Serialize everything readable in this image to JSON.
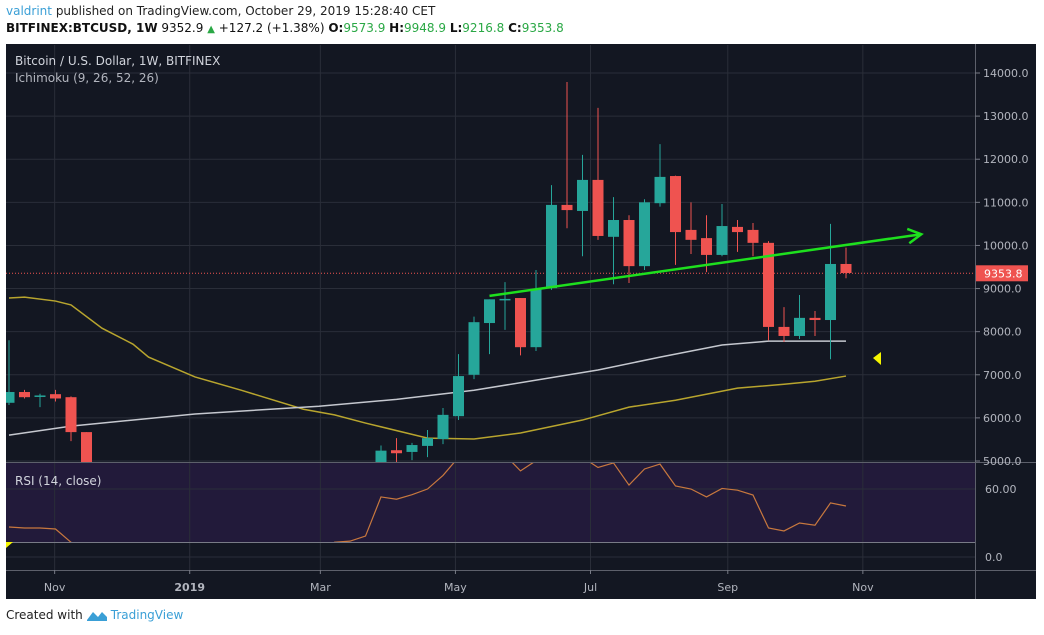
{
  "header": {
    "author": "valdrint",
    "published_text": "published on TradingView.com, October 29, 2019 15:28:40 CET",
    "symbol": "BITFINEX:BTCUSD, 1W",
    "last": "9352.9",
    "change": "+127.2 (+1.38%)",
    "o_label": "O:",
    "o": "9573.9",
    "h_label": "H:",
    "h": "9948.9",
    "l_label": "L:",
    "l": "9216.8",
    "c_label": "C:",
    "c": "9353.8"
  },
  "footer": {
    "created_with": "Created with",
    "brand": "TradingView"
  },
  "colors": {
    "background": "#131722",
    "grid": "#2a2e39",
    "up": "#26a69a",
    "down": "#ef5350",
    "ichimoku_yellow": "#b8a52e",
    "ichimoku_gray": "#c5c8cf",
    "trendline": "#1ee01e",
    "rsi_line": "#c8783e",
    "rsi_band": "#221a3a",
    "price_tag": "#ef5350",
    "marker": "#f5f500"
  },
  "chart_data": {
    "type": "candlestick",
    "title": "Bitcoin / U.S. Dollar, 1W, BITFINEX",
    "indicator": "Ichimoku (9, 26, 52, 26)",
    "ylim": [
      5000,
      14000
    ],
    "y_ticks": [
      "14000.0",
      "13000.0",
      "12000.0",
      "11000.0",
      "10000.0",
      "9000.0",
      "8000.0",
      "7000.0",
      "6000.0",
      "5000.0"
    ],
    "x_ticks": [
      {
        "label": "Nov",
        "date": "2018-11-01",
        "bold": false
      },
      {
        "label": "2019",
        "date": "2019-01-01",
        "bold": true
      },
      {
        "label": "Mar",
        "date": "2019-03-01",
        "bold": false
      },
      {
        "label": "May",
        "date": "2019-05-01",
        "bold": false
      },
      {
        "label": "Jul",
        "date": "2019-07-01",
        "bold": false
      },
      {
        "label": "Sep",
        "date": "2019-09-01",
        "bold": false
      },
      {
        "label": "Nov",
        "date": "2019-11-01",
        "bold": false
      }
    ],
    "grid": true,
    "last_price_label": "9353.8",
    "last_price": 9353.8,
    "candles": [
      {
        "date": "2018-10-15",
        "o": 6350,
        "h": 7800,
        "l": 6300,
        "c": 6600
      },
      {
        "date": "2018-10-22",
        "o": 6600,
        "h": 6650,
        "l": 6450,
        "c": 6480
      },
      {
        "date": "2018-10-29",
        "o": 6500,
        "h": 6560,
        "l": 6250,
        "c": 6520
      },
      {
        "date": "2018-11-05",
        "o": 6550,
        "h": 6650,
        "l": 6380,
        "c": 6450
      },
      {
        "date": "2018-11-12",
        "o": 6480,
        "h": 6500,
        "l": 5460,
        "c": 5670
      },
      {
        "date": "2018-11-19",
        "o": 5670,
        "h": 5670,
        "l": 3500,
        "c": 4000
      },
      {
        "date": "2019-04-01",
        "o": 4100,
        "h": 5360,
        "l": 4050,
        "c": 5240
      },
      {
        "date": "2019-04-08",
        "o": 5250,
        "h": 5530,
        "l": 4850,
        "c": 5180
      },
      {
        "date": "2019-04-15",
        "o": 5210,
        "h": 5420,
        "l": 5020,
        "c": 5370
      },
      {
        "date": "2019-04-22",
        "o": 5350,
        "h": 5720,
        "l": 5090,
        "c": 5530
      },
      {
        "date": "2019-04-29",
        "o": 5510,
        "h": 6230,
        "l": 5390,
        "c": 6070
      },
      {
        "date": "2019-05-06",
        "o": 6040,
        "h": 7480,
        "l": 5950,
        "c": 6970
      },
      {
        "date": "2019-05-13",
        "o": 7000,
        "h": 8350,
        "l": 6900,
        "c": 8220
      },
      {
        "date": "2019-05-20",
        "o": 8200,
        "h": 8750,
        "l": 7480,
        "c": 8750
      },
      {
        "date": "2019-05-27",
        "o": 8740,
        "h": 9150,
        "l": 8040,
        "c": 8760
      },
      {
        "date": "2019-06-03",
        "o": 8780,
        "h": 8780,
        "l": 7450,
        "c": 7640
      },
      {
        "date": "2019-06-10",
        "o": 7640,
        "h": 9430,
        "l": 7550,
        "c": 8990
      },
      {
        "date": "2019-06-17",
        "o": 9010,
        "h": 11400,
        "l": 8970,
        "c": 10940
      },
      {
        "date": "2019-06-24",
        "o": 10940,
        "h": 13790,
        "l": 10400,
        "c": 10820
      },
      {
        "date": "2019-07-01",
        "o": 10800,
        "h": 12100,
        "l": 9750,
        "c": 11520
      },
      {
        "date": "2019-07-08",
        "o": 11520,
        "h": 13190,
        "l": 10130,
        "c": 10220
      },
      {
        "date": "2019-07-15",
        "o": 10200,
        "h": 11120,
        "l": 9100,
        "c": 10590
      },
      {
        "date": "2019-07-22",
        "o": 10590,
        "h": 10700,
        "l": 9130,
        "c": 9520
      },
      {
        "date": "2019-07-29",
        "o": 9520,
        "h": 11070,
        "l": 9430,
        "c": 11000
      },
      {
        "date": "2019-08-05",
        "o": 10980,
        "h": 12350,
        "l": 10900,
        "c": 11590
      },
      {
        "date": "2019-08-12",
        "o": 11610,
        "h": 11620,
        "l": 9550,
        "c": 10310
      },
      {
        "date": "2019-08-19",
        "o": 10360,
        "h": 11000,
        "l": 9800,
        "c": 10130
      },
      {
        "date": "2019-08-26",
        "o": 10170,
        "h": 10700,
        "l": 9380,
        "c": 9780
      },
      {
        "date": "2019-09-02",
        "o": 9780,
        "h": 10960,
        "l": 9750,
        "c": 10450
      },
      {
        "date": "2019-09-09",
        "o": 10430,
        "h": 10590,
        "l": 9850,
        "c": 10310
      },
      {
        "date": "2019-09-16",
        "o": 10360,
        "h": 10520,
        "l": 9750,
        "c": 10060
      },
      {
        "date": "2019-09-23",
        "o": 10060,
        "h": 10100,
        "l": 7800,
        "c": 8110
      },
      {
        "date": "2019-09-30",
        "o": 8110,
        "h": 8570,
        "l": 7760,
        "c": 7900
      },
      {
        "date": "2019-10-07",
        "o": 7900,
        "h": 8850,
        "l": 7830,
        "c": 8320
      },
      {
        "date": "2019-10-14",
        "o": 8320,
        "h": 8480,
        "l": 7900,
        "c": 8270
      },
      {
        "date": "2019-10-21",
        "o": 8270,
        "h": 10500,
        "l": 7360,
        "c": 9570
      },
      {
        "date": "2019-10-28",
        "o": 9570,
        "h": 9950,
        "l": 9240,
        "c": 9360
      }
    ],
    "ichimoku_gray": [
      [
        "2018-10-15",
        5600
      ],
      [
        "2018-11-12",
        5810
      ],
      [
        "2019-01-07",
        6090
      ],
      [
        "2019-03-04",
        6270
      ],
      [
        "2019-04-08",
        6430
      ],
      [
        "2019-05-13",
        6640
      ],
      [
        "2019-07-08",
        7110
      ],
      [
        "2019-08-05",
        7410
      ],
      [
        "2019-09-02",
        7690
      ],
      [
        "2019-09-23",
        7780
      ],
      [
        "2019-10-28",
        7780
      ]
    ],
    "ichimoku_yellow": [
      [
        "2018-10-15",
        8780
      ],
      [
        "2018-10-22",
        8800
      ],
      [
        "2018-11-05",
        8710
      ],
      [
        "2018-11-12",
        8620
      ],
      [
        "2018-11-26",
        8080
      ],
      [
        "2018-12-10",
        7710
      ],
      [
        "2018-12-17",
        7410
      ],
      [
        "2019-01-07",
        6950
      ],
      [
        "2019-01-28",
        6640
      ],
      [
        "2019-02-25",
        6200
      ],
      [
        "2019-03-11",
        6070
      ],
      [
        "2019-03-25",
        5880
      ],
      [
        "2019-04-22",
        5530
      ],
      [
        "2019-05-13",
        5510
      ],
      [
        "2019-06-03",
        5650
      ],
      [
        "2019-07-01",
        5950
      ],
      [
        "2019-07-22",
        6250
      ],
      [
        "2019-08-12",
        6410
      ],
      [
        "2019-09-09",
        6690
      ],
      [
        "2019-09-30",
        6780
      ],
      [
        "2019-10-14",
        6850
      ],
      [
        "2019-10-28",
        6970
      ]
    ],
    "trendline": {
      "start": [
        "2019-05-20",
        8830
      ],
      "end": [
        "2019-12-01",
        10260
      ]
    },
    "rsi": {
      "label": "RSI (14, close)",
      "y_ticks": [
        "60.00",
        "0.0"
      ],
      "values": [
        [
          "2018-10-15",
          26.5
        ],
        [
          "2018-10-22",
          25.6
        ],
        [
          "2018-10-29",
          25.6
        ],
        [
          "2018-11-05",
          24.7
        ],
        [
          "2018-11-12",
          13
        ],
        [
          "2018-11-19",
          5
        ],
        [
          "2019-03-04",
          5
        ],
        [
          "2019-03-11",
          13
        ],
        [
          "2019-03-18",
          14
        ],
        [
          "2019-03-25",
          18.5
        ],
        [
          "2019-04-01",
          53
        ],
        [
          "2019-04-08",
          51
        ],
        [
          "2019-04-15",
          55
        ],
        [
          "2019-04-22",
          60
        ],
        [
          "2019-04-29",
          72
        ],
        [
          "2019-05-06",
          88
        ],
        [
          "2019-05-13",
          92
        ],
        [
          "2019-05-20",
          93
        ],
        [
          "2019-05-27",
          90
        ],
        [
          "2019-06-03",
          76
        ],
        [
          "2019-06-10",
          85
        ],
        [
          "2019-06-17",
          90
        ],
        [
          "2019-06-24",
          88
        ],
        [
          "2019-07-01",
          88
        ],
        [
          "2019-07-08",
          79
        ],
        [
          "2019-07-15",
          83
        ],
        [
          "2019-07-22",
          63.5
        ],
        [
          "2019-07-29",
          77.7
        ],
        [
          "2019-08-05",
          82
        ],
        [
          "2019-08-12",
          62.7
        ],
        [
          "2019-08-19",
          60
        ],
        [
          "2019-08-26",
          53
        ],
        [
          "2019-09-02",
          60.5
        ],
        [
          "2019-09-09",
          59
        ],
        [
          "2019-09-16",
          54.7
        ],
        [
          "2019-09-23",
          25.6
        ],
        [
          "2019-09-30",
          23
        ],
        [
          "2019-10-07",
          30
        ],
        [
          "2019-10-14",
          28
        ],
        [
          "2019-10-21",
          47.7
        ],
        [
          "2019-10-28",
          45
        ]
      ]
    }
  }
}
